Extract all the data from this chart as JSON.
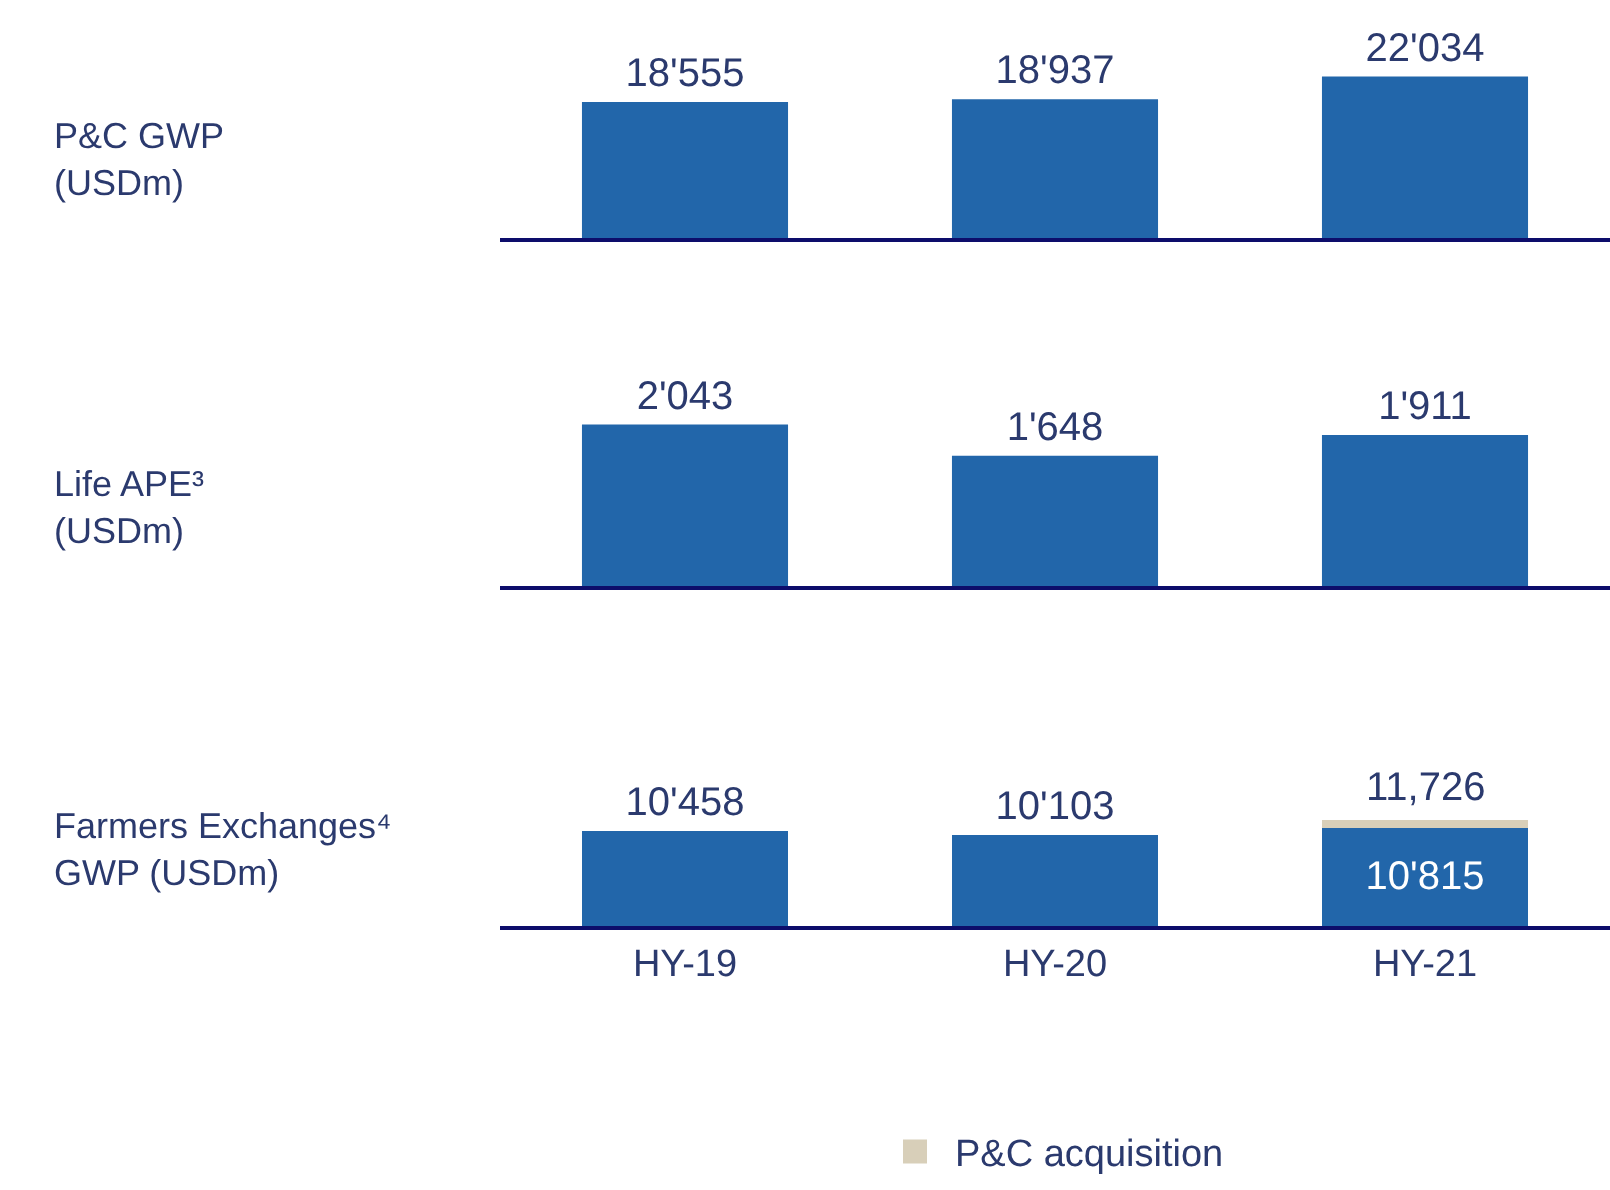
{
  "chart_data": [
    {
      "type": "bar",
      "ylabel": "P&C GWP\n(USDm)",
      "categories": [
        null,
        null,
        null
      ],
      "values": [
        18555,
        18937,
        22034
      ],
      "value_labels": [
        "18'555",
        "18'937",
        "22'034"
      ],
      "color": "#2266aa",
      "tick_labels": false
    },
    {
      "type": "bar",
      "ylabel": "Life APE³\n(USDm)",
      "categories": [
        null,
        null,
        null
      ],
      "values": [
        2043,
        1648,
        1911
      ],
      "value_labels": [
        "2'043",
        "1'648",
        "1'911"
      ],
      "color": "#2266aa",
      "tick_labels": false
    },
    {
      "type": "bar",
      "ylabel": "Farmers Exchanges⁴\nGWP (USDm)",
      "categories": [
        "HY-19",
        "HY-20",
        "HY-21"
      ],
      "stacked": true,
      "series": [
        {
          "color": "#2266aa",
          "values": [
            10458,
            10103,
            10815
          ],
          "value_labels": [
            "10'458",
            "10'103",
            "10'815"
          ]
        },
        {
          "name": "P&C acquisition",
          "color": "#d8cfb9",
          "values": [
            null,
            null,
            911
          ]
        }
      ],
      "totals": [
        null,
        null,
        "11,726"
      ],
      "legend": "bottom",
      "tick_labels": "x"
    }
  ]
}
